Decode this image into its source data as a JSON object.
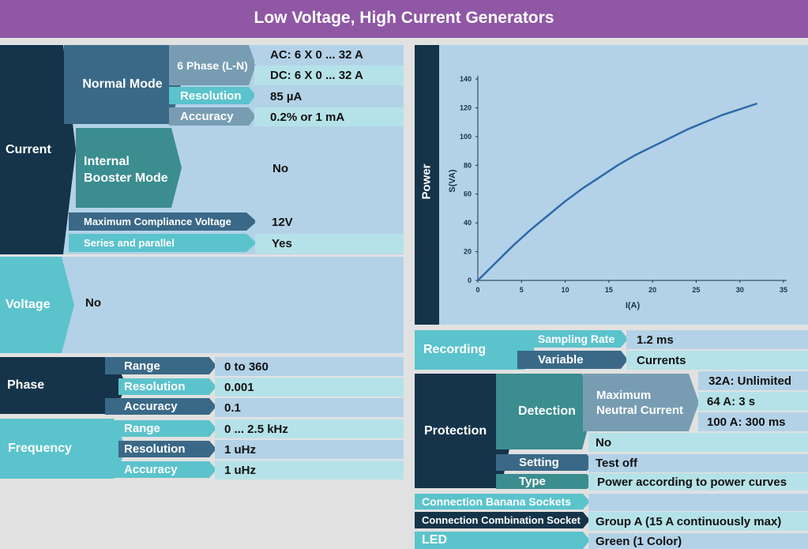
{
  "title": "Low Voltage, High Current Generators",
  "current": {
    "label": "Current",
    "normal_mode": "Normal Mode",
    "phase_6": "6 Phase (L-N)",
    "ac": "AC: 6 X 0 ... 32 A",
    "dc": "DC: 6 X 0 ... 32 A",
    "resolution_label": "Resolution",
    "resolution": "85 µA",
    "accuracy_label": "Accuracy",
    "accuracy": "0.2% or 1 mA",
    "booster_line1": "Internal",
    "booster_line2": "Booster Mode",
    "booster_value": "No",
    "mcv_label": "Maximum Compliance Voltage",
    "mcv_value": "12V",
    "series_label": "Series and parallel",
    "series_value": "Yes"
  },
  "voltage": {
    "label": "Voltage",
    "value": "No"
  },
  "phase": {
    "label": "Phase",
    "range_label": "Range",
    "range": "0  to 360",
    "resolution_label": "Resolution",
    "resolution": "0.001",
    "accuracy_label": "Accuracy",
    "accuracy": "0.1"
  },
  "frequency": {
    "label": "Frequency",
    "range_label": "Range",
    "range": "0 ... 2.5 kHz",
    "resolution_label": "Resolution",
    "resolution": "1 uHz",
    "accuracy_label": "Accuracy",
    "accuracy": "1 uHz"
  },
  "power": {
    "label": "Power"
  },
  "chart_data": {
    "type": "line",
    "xlabel": "I(A)",
    "ylabel": "S(VA)",
    "xlim": [
      0,
      35
    ],
    "ylim": [
      0,
      140
    ],
    "xticks": [
      0,
      5,
      10,
      15,
      20,
      25,
      30,
      35
    ],
    "yticks": [
      0,
      20,
      40,
      60,
      80,
      100,
      120,
      140
    ],
    "grid": false,
    "series": [
      {
        "x": [
          0,
          2,
          4,
          6,
          8,
          10,
          12,
          14,
          16,
          18,
          20,
          22,
          24,
          26,
          28,
          30,
          32
        ],
        "y": [
          0,
          12,
          24,
          35,
          45,
          55,
          64,
          72,
          80,
          87,
          93,
          99,
          105,
          110,
          115,
          119,
          123
        ]
      }
    ],
    "color": "#2e6aa8"
  },
  "recording": {
    "label": "Recording",
    "sampling_label": "Sampling Rate",
    "sampling": "1.2 ms",
    "variable_label": "Variable",
    "variable": "Currents"
  },
  "protection": {
    "label": "Protection",
    "detection": "Detection",
    "max_neutral_line1": "Maximum",
    "max_neutral_line2": "Neutral Current",
    "mnc_1": "32A: Unlimited",
    "mnc_2": "64 A: 3 s",
    "mnc_3": "100 A: 300 ms",
    "detection_no": "No",
    "setting_label": "Setting",
    "setting": "Test off",
    "type_label": "Type",
    "type": "Power according to power curves"
  },
  "connection": {
    "banana_label": "Connection Banana Sockets",
    "banana_value": "",
    "combo_label": "Connection Combination Socket",
    "combo_value": "Group A (15 A continuously max)"
  },
  "led": {
    "label": "LED",
    "value": "Green (1 Color)"
  }
}
